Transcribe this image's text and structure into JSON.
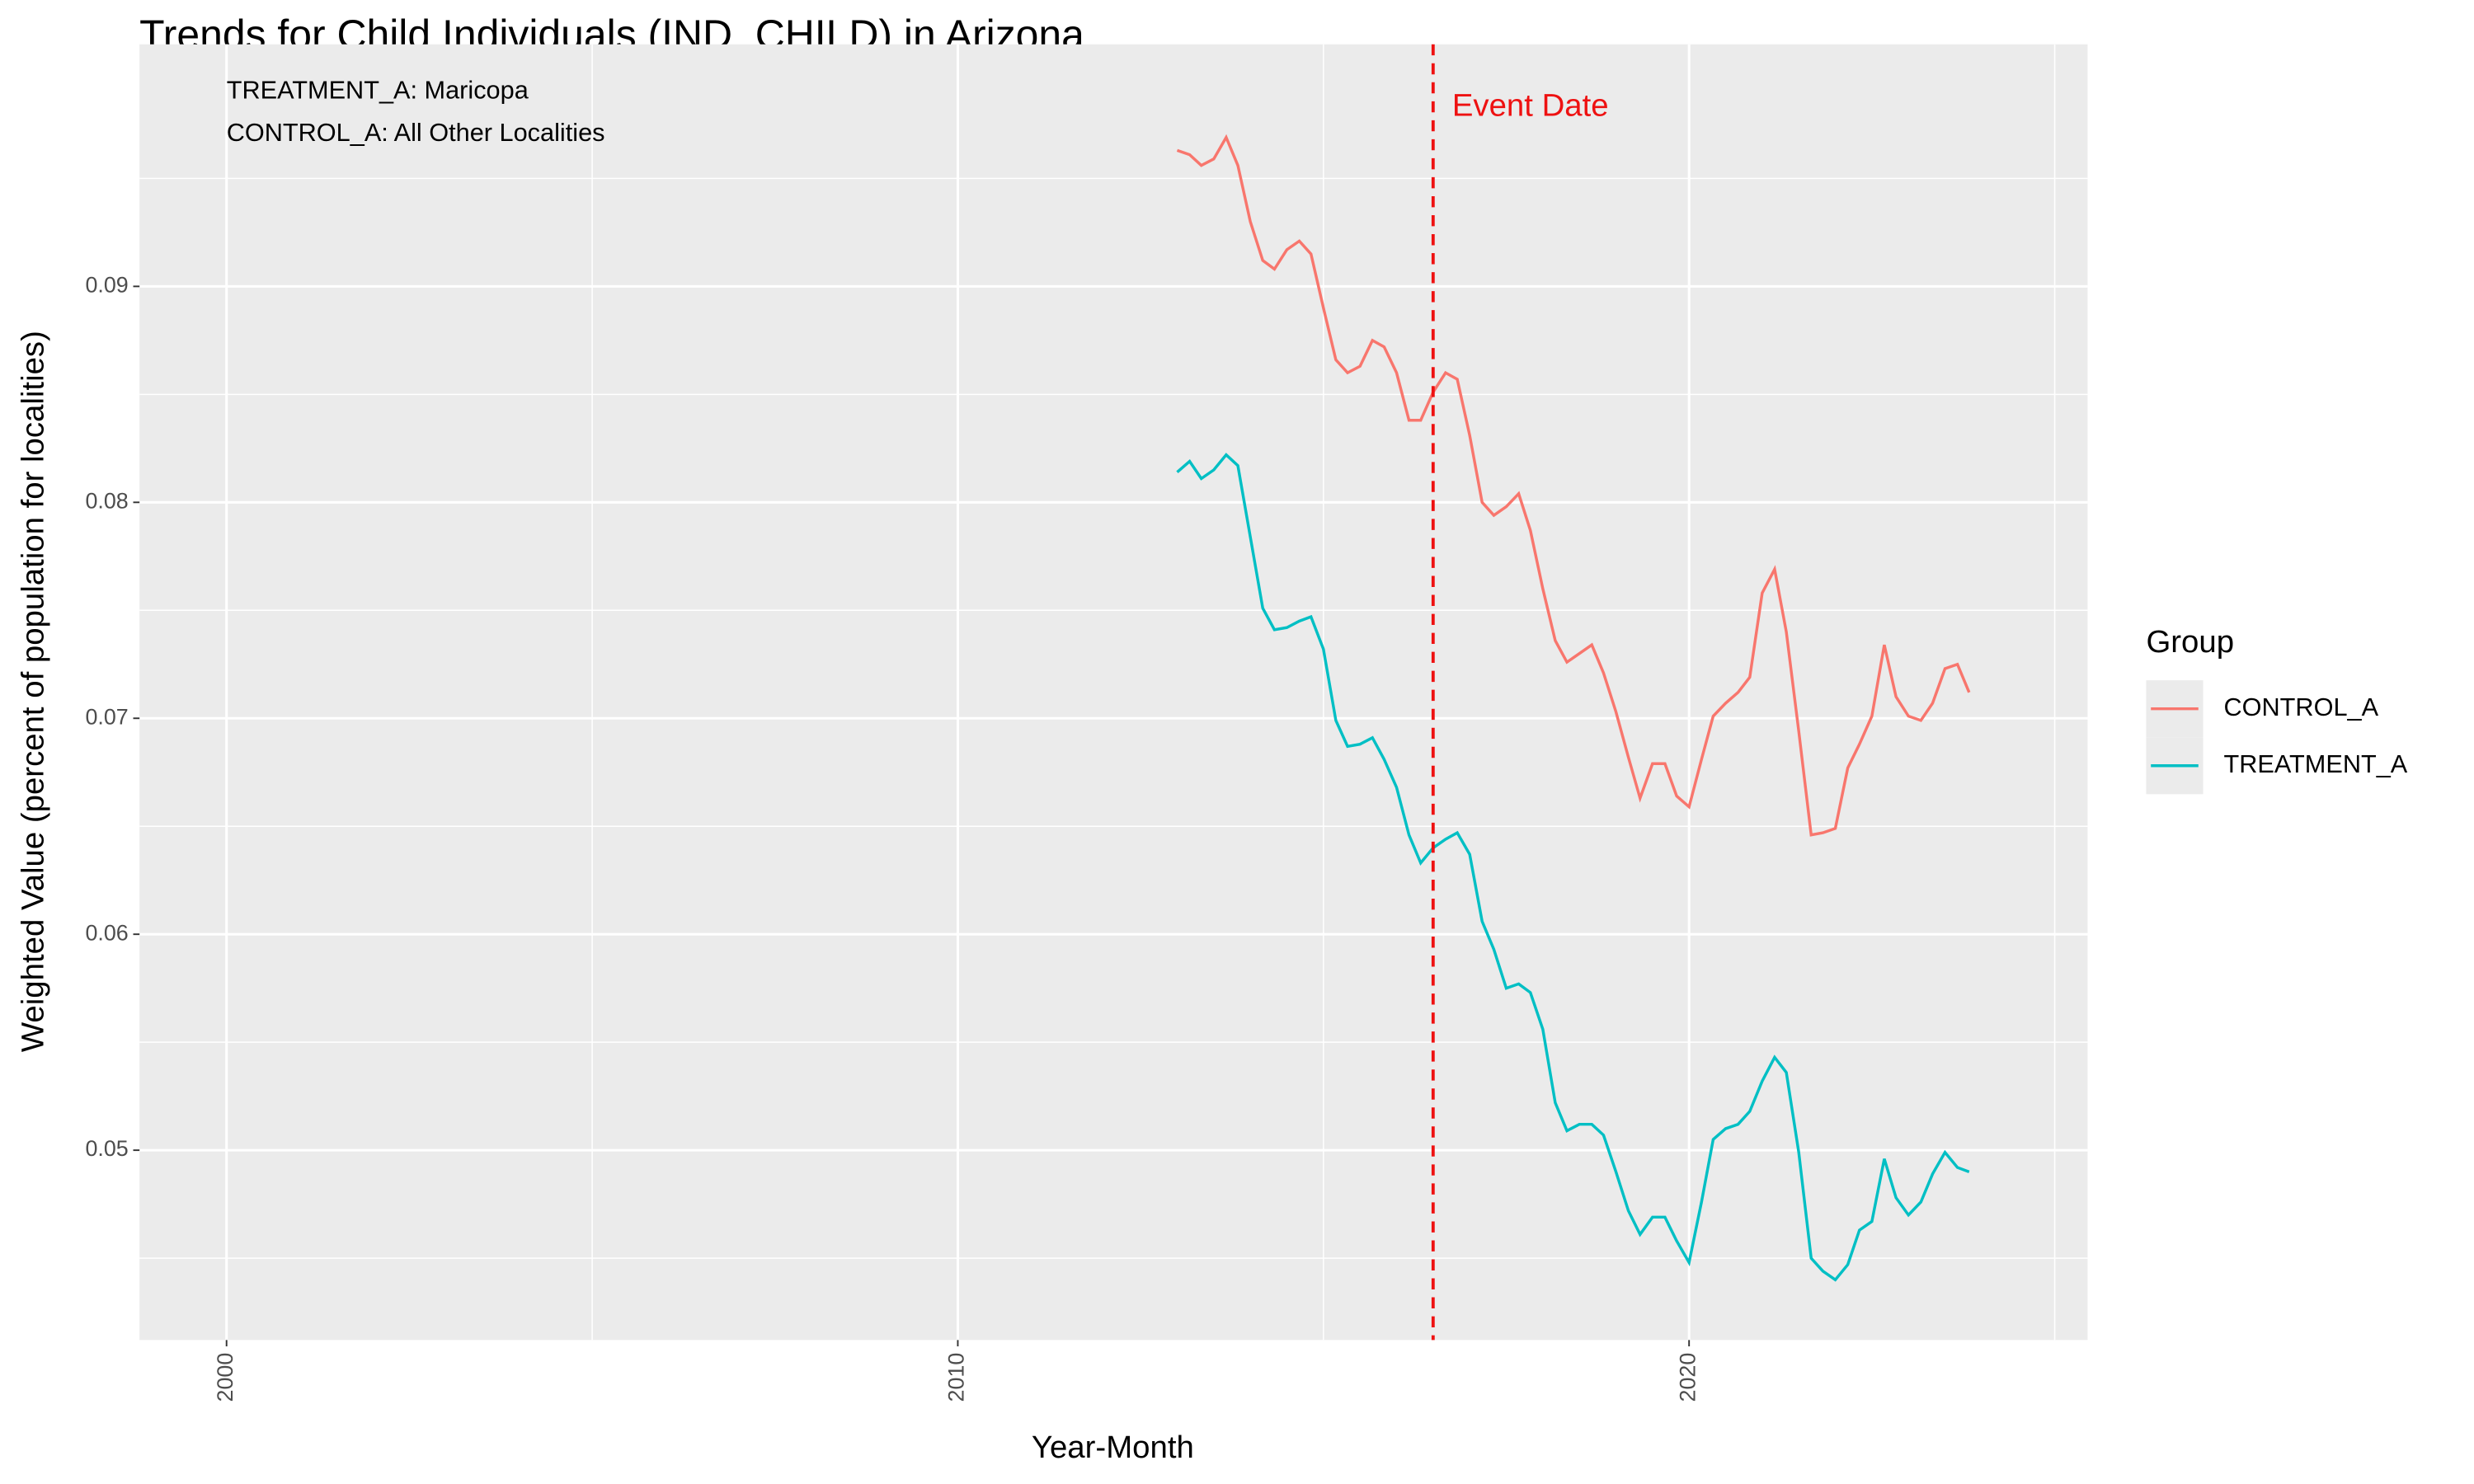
{
  "chart_data": {
    "type": "line",
    "title": "Trends for Child Individuals (IND_CHILD) in Arizona",
    "x_label": "Year-Month",
    "y_label": "Weighted Value (percent of population for localities)",
    "annotations": [
      "TREATMENT_A: Maricopa",
      "CONTROL_A: All Other Localities"
    ],
    "event_line": {
      "x": 2016.5,
      "label": "Event Date",
      "color": "#EE1111"
    },
    "x": [
      2013,
      2013.17,
      2013.33,
      2013.5,
      2013.67,
      2013.83,
      2014,
      2014.17,
      2014.33,
      2014.5,
      2014.67,
      2014.83,
      2015,
      2015.17,
      2015.33,
      2015.5,
      2015.67,
      2015.83,
      2016,
      2016.17,
      2016.33,
      2016.5,
      2016.67,
      2016.83,
      2017,
      2017.17,
      2017.33,
      2017.5,
      2017.67,
      2017.83,
      2018,
      2018.17,
      2018.33,
      2018.5,
      2018.67,
      2018.83,
      2019,
      2019.17,
      2019.33,
      2019.5,
      2019.67,
      2019.83,
      2020,
      2020.17,
      2020.33,
      2020.5,
      2020.67,
      2020.83,
      2021,
      2021.17,
      2021.33,
      2021.5,
      2021.67,
      2021.83,
      2022,
      2022.17,
      2022.33,
      2022.5,
      2022.67,
      2022.83,
      2023,
      2023.17,
      2023.33,
      2023.5,
      2023.67,
      2023.83
    ],
    "series": [
      {
        "name": "CONTROL_A",
        "color": "#F8766D",
        "values": [
          0.0963,
          0.0961,
          0.0956,
          0.0959,
          0.0969,
          0.0956,
          0.093,
          0.0912,
          0.0908,
          0.0917,
          0.0921,
          0.0915,
          0.089,
          0.0866,
          0.086,
          0.0863,
          0.0875,
          0.0872,
          0.086,
          0.0838,
          0.0838,
          0.0851,
          0.086,
          0.0857,
          0.0831,
          0.08,
          0.0794,
          0.0798,
          0.0804,
          0.0787,
          0.076,
          0.0736,
          0.0726,
          0.073,
          0.0734,
          0.0721,
          0.0703,
          0.0682,
          0.0663,
          0.0679,
          0.0679,
          0.0664,
          0.0659,
          0.0681,
          0.0701,
          0.0707,
          0.0712,
          0.0719,
          0.0758,
          0.0769,
          0.074,
          0.0694,
          0.0646,
          0.0647,
          0.0649,
          0.0677,
          0.0688,
          0.0701,
          0.0734,
          0.071,
          0.0701,
          0.0699,
          0.0707,
          0.0723,
          0.0725,
          0.0712
        ]
      },
      {
        "name": "TREATMENT_A",
        "color": "#00BFC4",
        "values": [
          0.0814,
          0.0819,
          0.0811,
          0.0815,
          0.0822,
          0.0817,
          0.0784,
          0.0751,
          0.0741,
          0.0742,
          0.0745,
          0.0747,
          0.0732,
          0.0699,
          0.0687,
          0.0688,
          0.0691,
          0.0681,
          0.0668,
          0.0646,
          0.0633,
          0.064,
          0.0644,
          0.0647,
          0.0637,
          0.0606,
          0.0593,
          0.0575,
          0.0577,
          0.0573,
          0.0556,
          0.0522,
          0.0509,
          0.0512,
          0.0512,
          0.0507,
          0.049,
          0.0472,
          0.0461,
          0.0469,
          0.0469,
          0.0458,
          0.0448,
          0.0476,
          0.0505,
          0.051,
          0.0512,
          0.0518,
          0.0532,
          0.0543,
          0.0536,
          0.0499,
          0.045,
          0.0444,
          0.044,
          0.0447,
          0.0463,
          0.0467,
          0.0496,
          0.0478,
          0.047,
          0.0476,
          0.0489,
          0.0499,
          0.0492,
          0.049
        ]
      }
    ],
    "xlim": [
      1998.81,
      2025.45
    ],
    "ylim": [
      0.04121,
      0.10121
    ],
    "xticks": [
      2000,
      2010,
      2020
    ],
    "yticks": [
      0.05,
      0.06,
      0.07,
      0.08,
      0.09
    ],
    "grid": true,
    "legend_title": "Group",
    "legend": "right"
  }
}
